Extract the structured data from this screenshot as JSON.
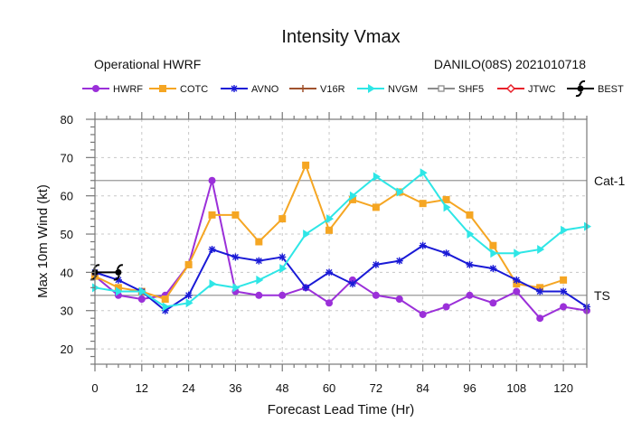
{
  "chart_data": {
    "type": "line",
    "title": "Intensity Vmax",
    "subtitle_left": "Operational HWRF",
    "subtitle_right": "DANILO(08S) 2021010718",
    "xlabel": "Forecast Lead Time (Hr)",
    "ylabel": "Max 10m Wind (kt)",
    "xlim": [
      0,
      126
    ],
    "ylim": [
      16,
      80
    ],
    "xticks": [
      0,
      12,
      24,
      36,
      48,
      60,
      72,
      84,
      96,
      108,
      120
    ],
    "yticks": [
      20,
      30,
      40,
      50,
      60,
      70,
      80
    ],
    "grid": true,
    "legend_position": "top",
    "reference_lines": [
      {
        "label": "Cat-1",
        "value": 64
      },
      {
        "label": "TS",
        "value": 34
      }
    ],
    "series": [
      {
        "name": "HWRF",
        "color": "#9b30d9",
        "marker": "circle",
        "x": [
          0,
          6,
          12,
          18,
          24,
          30,
          36,
          42,
          48,
          54,
          60,
          66,
          72,
          78,
          84,
          90,
          96,
          102,
          108,
          114,
          120,
          126
        ],
        "values": [
          39,
          34,
          33,
          34,
          42,
          64,
          35,
          34,
          34,
          36,
          32,
          38,
          34,
          33,
          29,
          31,
          34,
          32,
          35,
          28,
          31,
          30
        ]
      },
      {
        "name": "COTC",
        "color": "#f5a623",
        "marker": "square",
        "x": [
          0,
          6,
          12,
          18,
          24,
          30,
          36,
          42,
          48,
          54,
          60,
          66,
          72,
          78,
          84,
          90,
          96,
          102,
          108,
          114,
          120
        ],
        "values": [
          39,
          36,
          35,
          33,
          42,
          55,
          55,
          48,
          54,
          68,
          51,
          59,
          57,
          61,
          58,
          59,
          55,
          47,
          37,
          36,
          38
        ]
      },
      {
        "name": "AVNO",
        "color": "#1a1ad6",
        "marker": "asterisk",
        "x": [
          0,
          6,
          12,
          18,
          24,
          30,
          36,
          42,
          48,
          54,
          60,
          66,
          72,
          78,
          84,
          90,
          96,
          102,
          108,
          114,
          120,
          126
        ],
        "values": [
          40,
          38,
          35,
          30,
          34,
          46,
          44,
          43,
          44,
          36,
          40,
          37,
          42,
          43,
          47,
          45,
          42,
          41,
          38,
          35,
          35,
          31
        ]
      },
      {
        "name": "V16R",
        "color": "#a0522d",
        "marker": "plus",
        "x": [],
        "values": []
      },
      {
        "name": "NVGM",
        "color": "#2ee6e6",
        "marker": "triangle-right",
        "x": [
          0,
          6,
          12,
          18,
          24,
          30,
          36,
          42,
          48,
          54,
          60,
          66,
          72,
          78,
          84,
          90,
          96,
          102,
          108,
          114,
          120,
          126
        ],
        "values": [
          36,
          35,
          35,
          31,
          32,
          37,
          36,
          38,
          41,
          50,
          54,
          60,
          65,
          61,
          66,
          57,
          50,
          45,
          45,
          46,
          51,
          52
        ]
      },
      {
        "name": "SHF5",
        "color": "#8c8c8c",
        "marker": "open-square",
        "x": [],
        "values": []
      },
      {
        "name": "JTWC",
        "color": "#e8202a",
        "marker": "open-diamond",
        "x": [],
        "values": []
      },
      {
        "name": "BEST",
        "color": "#000000",
        "marker": "hurricane",
        "x": [
          0,
          6
        ],
        "values": [
          40,
          40
        ]
      }
    ]
  }
}
